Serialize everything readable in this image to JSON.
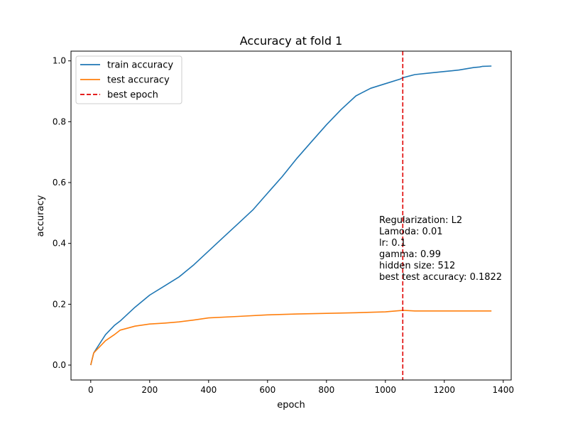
{
  "chart_data": {
    "type": "line",
    "title": "Accuracy at fold 1",
    "xlabel": "epoch",
    "ylabel": "accuracy",
    "xlim": [
      -67,
      1427
    ],
    "ylim": [
      -0.049,
      1.032
    ],
    "xticks": [
      0,
      200,
      400,
      600,
      800,
      1000,
      1200,
      1400
    ],
    "yticks": [
      0.0,
      0.2,
      0.4,
      0.6,
      0.8,
      1.0
    ],
    "xtick_labels": [
      "0",
      "200",
      "400",
      "600",
      "800",
      "1000",
      "1200",
      "1400"
    ],
    "ytick_labels": [
      "0.0",
      "0.2",
      "0.4",
      "0.6",
      "0.8",
      "1.0"
    ],
    "legend_position": "top-left",
    "series": [
      {
        "name": "train accuracy",
        "color": "#1f77b4",
        "style": "solid",
        "x": [
          0,
          10,
          20,
          30,
          50,
          80,
          100,
          150,
          200,
          250,
          300,
          350,
          400,
          450,
          500,
          550,
          600,
          650,
          700,
          750,
          800,
          850,
          900,
          950,
          1000,
          1050,
          1060,
          1100,
          1150,
          1200,
          1250,
          1300,
          1320,
          1330,
          1360
        ],
        "y": [
          0.0,
          0.04,
          0.055,
          0.07,
          0.1,
          0.13,
          0.145,
          0.19,
          0.23,
          0.26,
          0.29,
          0.33,
          0.375,
          0.42,
          0.465,
          0.51,
          0.565,
          0.62,
          0.68,
          0.735,
          0.79,
          0.84,
          0.885,
          0.91,
          0.925,
          0.94,
          0.945,
          0.955,
          0.96,
          0.965,
          0.97,
          0.978,
          0.98,
          0.982,
          0.983
        ]
      },
      {
        "name": "test accuracy",
        "color": "#ff7f0e",
        "style": "solid",
        "x": [
          0,
          10,
          20,
          30,
          50,
          80,
          100,
          150,
          200,
          250,
          300,
          350,
          400,
          500,
          600,
          700,
          800,
          900,
          1000,
          1060,
          1100,
          1200,
          1300,
          1360
        ],
        "y": [
          0.0,
          0.04,
          0.05,
          0.06,
          0.08,
          0.1,
          0.115,
          0.128,
          0.135,
          0.138,
          0.142,
          0.148,
          0.155,
          0.16,
          0.165,
          0.168,
          0.17,
          0.172,
          0.175,
          0.18,
          0.178,
          0.178,
          0.178,
          0.178
        ]
      }
    ],
    "vlines": [
      {
        "name": "best epoch",
        "x": 1059,
        "color": "#e00000",
        "style": "dashed"
      }
    ],
    "annotation_lines": [
      "Regularization: L2",
      "Lamoda: 0.01",
      "lr: 0.1",
      "gamma: 0.99",
      "hidden size: 512",
      "best test accuracy: 0.1822"
    ]
  }
}
